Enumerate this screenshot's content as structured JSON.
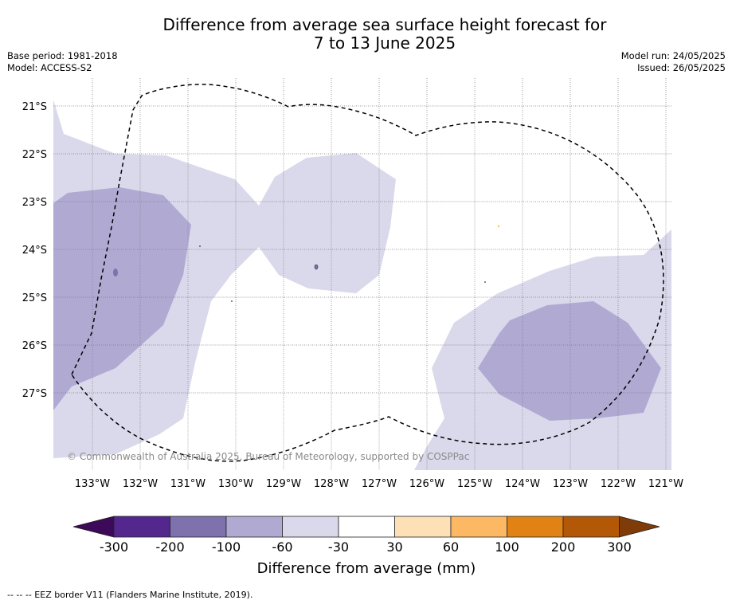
{
  "header": {
    "title_line1": "Difference from average sea surface height forecast for",
    "title_line2": "7 to 13 June 2025",
    "base_period": "Base period: 1981-2018",
    "model": "Model: ACCESS-S2",
    "model_run": "Model run: 24/05/2025",
    "issued": "Issued: 26/05/2025"
  },
  "map": {
    "lat_labels": [
      "21°S",
      "22°S",
      "23°S",
      "24°S",
      "25°S",
      "26°S",
      "27°S"
    ],
    "lon_labels": [
      "133°W",
      "132°W",
      "131°W",
      "130°W",
      "129°W",
      "128°W",
      "127°W",
      "126°W",
      "125°W",
      "124°W",
      "123°W",
      "122°W",
      "121°W"
    ],
    "copyright": "© Commonwealth of Australia 2025, Bureau of Meteorology, supported by COSPPac",
    "colors": {
      "band_minus60_minus30": "#d9d9eb",
      "band_minus100_minus60": "#b0aad2",
      "eez_line": "#000000"
    }
  },
  "colorbar": {
    "title": "Difference from average (mm)",
    "ticks": [
      "-300",
      "-200",
      "-100",
      "-60",
      "-30",
      "30",
      "60",
      "100",
      "200",
      "300"
    ],
    "colors": [
      "#3d0a5a",
      "#54278f",
      "#7f70ae",
      "#b0aad2",
      "#d9d9eb",
      "#ffffff",
      "#fee0b6",
      "#fdb863",
      "#e08214",
      "#b35806",
      "#7f3b08"
    ]
  },
  "footnote": "-- -- -- EEZ border V11 (Flanders Marine Institute, 2019)."
}
